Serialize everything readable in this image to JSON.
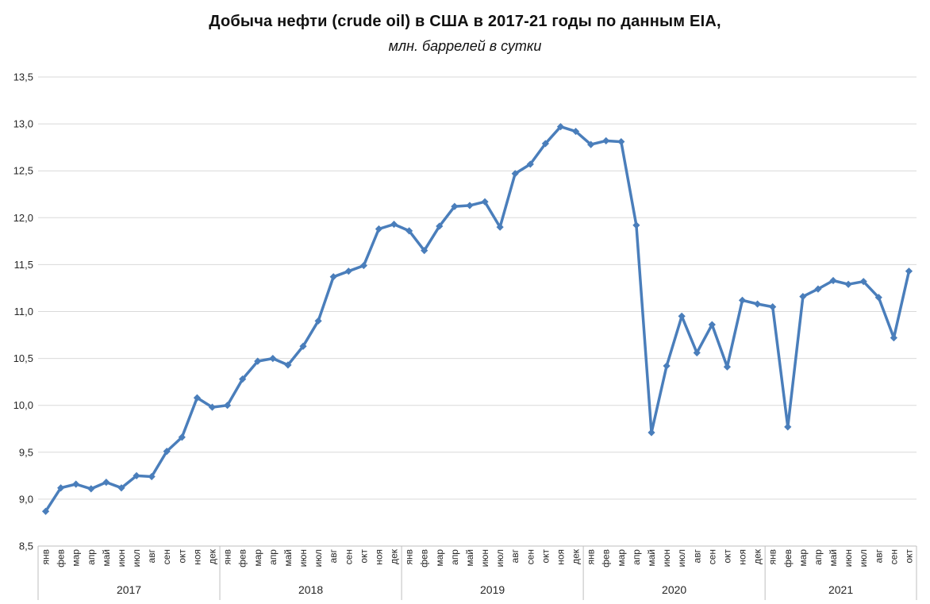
{
  "header": {
    "title": "Добыча нефти (crude oil) в США в 2017-21 годы по данным EIA,",
    "subtitle": "млн. баррелей в сутки"
  },
  "chart_data": {
    "type": "line",
    "title": "Добыча нефти (crude oil) в США в 2017-21 годы по данным EIA,",
    "subtitle": "млн. баррелей в сутки",
    "ylabel": "млн. баррелей в сутки",
    "ylim": [
      8.5,
      13.5
    ],
    "y_tick_step": 0.5,
    "y_tick_labels": [
      "8,5",
      "9,0",
      "9,5",
      "10,0",
      "10,5",
      "11,0",
      "11,5",
      "12,0",
      "12,5",
      "13,0",
      "13,5"
    ],
    "grid": true,
    "legend_position": "none",
    "marker": "diamond",
    "colors": {
      "line": "#4a7ebb",
      "gridline": "#d9d9d9",
      "axis": "#bfbfbf",
      "label": "#262626"
    },
    "groups": [
      {
        "year": "2017",
        "months": [
          "янв",
          "фев",
          "мар",
          "апр",
          "май",
          "июн",
          "июл",
          "авг",
          "сен",
          "окт",
          "ноя",
          "дек"
        ],
        "values": [
          8.87,
          9.12,
          9.16,
          9.11,
          9.18,
          9.12,
          9.25,
          9.24,
          9.51,
          9.66,
          10.08,
          9.98
        ]
      },
      {
        "year": "2018",
        "months": [
          "янв",
          "фев",
          "мар",
          "апр",
          "май",
          "июн",
          "июл",
          "авг",
          "сен",
          "окт",
          "ноя",
          "дек"
        ],
        "values": [
          10.0,
          10.28,
          10.47,
          10.5,
          10.43,
          10.63,
          10.9,
          11.37,
          11.43,
          11.49,
          11.88,
          11.93
        ]
      },
      {
        "year": "2019",
        "months": [
          "янв",
          "фев",
          "мар",
          "апр",
          "май",
          "июн",
          "июл",
          "авг",
          "сен",
          "окт",
          "ноя",
          "дек"
        ],
        "values": [
          11.86,
          11.65,
          11.91,
          12.12,
          12.13,
          12.17,
          11.9,
          12.47,
          12.57,
          12.79,
          12.97,
          12.92
        ]
      },
      {
        "year": "2020",
        "months": [
          "янв",
          "фев",
          "мар",
          "апр",
          "май",
          "июн",
          "июл",
          "авг",
          "сен",
          "окт",
          "ноя",
          "дек"
        ],
        "values": [
          12.78,
          12.82,
          12.81,
          11.92,
          9.71,
          10.42,
          10.95,
          10.56,
          10.86,
          10.41,
          11.12,
          11.08
        ]
      },
      {
        "year": "2021",
        "months": [
          "янв",
          "фев",
          "мар",
          "апр",
          "май",
          "июн",
          "июл",
          "авг",
          "сен",
          "окт"
        ],
        "values": [
          11.05,
          9.77,
          11.16,
          11.24,
          11.33,
          11.29,
          11.32,
          11.15,
          10.72,
          11.43
        ]
      }
    ]
  }
}
